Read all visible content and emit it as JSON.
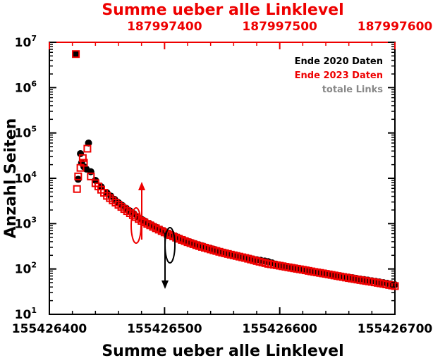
{
  "chart_data": {
    "type": "scatter",
    "title": "",
    "xlabel": "Summe ueber alle Linklevel",
    "x2label": "Summe ueber alle Linklevel",
    "ylabel": "Anzahl Seiten",
    "xlim": [
      155426400,
      155426700
    ],
    "x2lim": [
      187997300,
      187997600
    ],
    "ylim": [
      10,
      10000000
    ],
    "yscale": "log",
    "x_ticks": [
      "155426400",
      "155426500",
      "155426600",
      "155426700"
    ],
    "x2_ticks": [
      "187997400",
      "187997500",
      "187997600"
    ],
    "y_ticks": [
      {
        "base": "10",
        "exp": "1"
      },
      {
        "base": "10",
        "exp": "2"
      },
      {
        "base": "10",
        "exp": "3"
      },
      {
        "base": "10",
        "exp": "4"
      },
      {
        "base": "10",
        "exp": "5"
      },
      {
        "base": "10",
        "exp": "6"
      },
      {
        "base": "10",
        "exp": "7"
      }
    ],
    "colors": {
      "black_series": "#000000",
      "red_series": "#ee0000",
      "gray_series": "#888888",
      "top_axis": "#ee0000"
    },
    "legend_position": "top-right",
    "legend": [
      "Ende 2020 Daten",
      "Ende 2023 Daten",
      "totale Links"
    ],
    "series": [
      {
        "name": "Ende 2020 Daten",
        "axis": "bottom",
        "marker": "filled-circle",
        "x": [
          155426423,
          155426425,
          155426427,
          155426428,
          155426430,
          155426432,
          155426434,
          155426436,
          155426440,
          155426445,
          155426450,
          155426460,
          155426470,
          155426480,
          155426490,
          155426500,
          155426510,
          155426520,
          155426530,
          155426540,
          155426550,
          155426560,
          155426570,
          155426580,
          155426587,
          155426590,
          155426600,
          155426610,
          155426620,
          155426630,
          155426640,
          155426650,
          155426660,
          155426670,
          155426680,
          155426690,
          155426700
        ],
        "y": [
          5500000,
          9500,
          35000,
          22000,
          18000,
          16000,
          60000,
          14000,
          9000,
          6500,
          4800,
          2900,
          1900,
          1250,
          900,
          680,
          520,
          410,
          340,
          285,
          240,
          205,
          180,
          160,
          150,
          145,
          120,
          110,
          98,
          88,
          80,
          72,
          66,
          60,
          55,
          50,
          45
        ]
      },
      {
        "name": "Ende 2023 Daten",
        "axis": "top",
        "marker": "open-square",
        "x": [
          187997323,
          187997324,
          187997325,
          187997327,
          187997329,
          187997330,
          187997333,
          187997336,
          187997340,
          187997345,
          187997350,
          187997360,
          187997370,
          187997380,
          187997390,
          187997400,
          187997410,
          187997420,
          187997430,
          187997440,
          187997450,
          187997460,
          187997470,
          187997480,
          187997490,
          187997500,
          187997510,
          187997520,
          187997530,
          187997540,
          187997550,
          187997560,
          187997570,
          187997580,
          187997590,
          187997600
        ],
        "y": [
          5500000,
          5800,
          11000,
          17000,
          28000,
          22000,
          45000,
          11000,
          7800,
          5600,
          4100,
          2600,
          1700,
          1150,
          850,
          640,
          490,
          390,
          320,
          270,
          230,
          200,
          175,
          150,
          130,
          118,
          106,
          96,
          86,
          78,
          70,
          63,
          57,
          52,
          47,
          42
        ]
      }
    ],
    "annotations": [
      {
        "kind": "arrow-up",
        "axis": "top",
        "meaning": "red series uses top axis"
      },
      {
        "kind": "arrow-down",
        "axis": "bottom",
        "meaning": "black series uses bottom axis"
      }
    ]
  }
}
